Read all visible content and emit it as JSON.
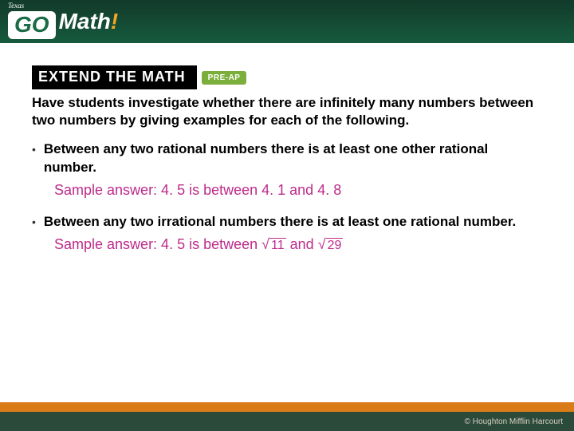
{
  "header": {
    "region": "Texas",
    "go": "GO",
    "math": "Math",
    "excl": "!"
  },
  "banner": {
    "label": "EXTEND THE MATH",
    "tag": "PRE-AP"
  },
  "prompt": "Have students investigate whether there are infinitely many numbers between two numbers by giving examples for each of the following.",
  "bullets": [
    {
      "text": "Between any two rational numbers there is at least one other rational number.",
      "answer": "Sample answer: 4. 5 is between 4. 1 and 4. 8"
    },
    {
      "text": "Between any two irrational numbers there is at least one rational number.",
      "answer_prefix": "Sample answer: 4. 5 is between ",
      "rad1": "11",
      "mid": " and ",
      "rad2": "29"
    }
  ],
  "footer": {
    "copyright": "© Houghton Mifflin Harcourt"
  },
  "colors": {
    "bg_orange": "#e8941e",
    "header_green_top": "#123a2a",
    "header_green_bot": "#165a3e",
    "answer_magenta": "#bd2b8a",
    "preap_green": "#7cae3c",
    "footer_bar": "#d97c17",
    "footer_green": "#2b4a3a"
  }
}
